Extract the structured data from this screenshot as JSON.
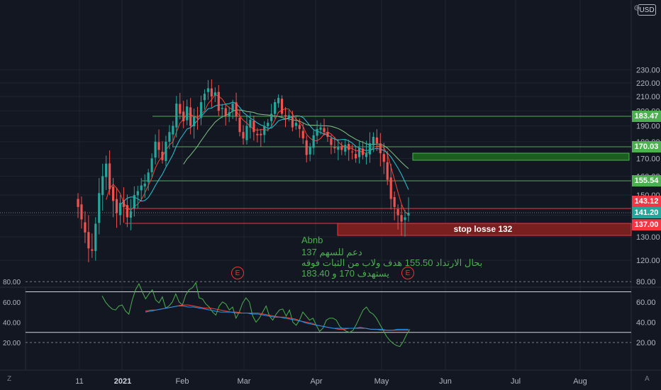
{
  "header": {
    "currency": "USD",
    "currency_icon": "settings-icon"
  },
  "annotation": {
    "title": "Abnb",
    "line1": "دعم للسهم 137",
    "line2": "بحال الارتداد 155.50 هدف ولاب من الثبات فوقه",
    "line3": "يستهدف 170 و 183.40"
  },
  "stop_loss": {
    "label": "stop losse 132"
  },
  "earnings_marker": "E",
  "footer": {
    "left_icon": "Z",
    "right_icon": "A"
  },
  "colors": {
    "up": "#26a69a",
    "down": "#ef5350",
    "support": "#4caf50",
    "resistance": "#f23645",
    "ma_fast": "#f44336",
    "ma_mid": "#26c6da",
    "ma_slow": "#81c784"
  },
  "chart_data": [
    {
      "type": "candlestick",
      "symbol": "Abnb",
      "x_ticks": [
        "11",
        "2021",
        "Feb",
        "Mar",
        "Apr",
        "May",
        "Jun",
        "Jul",
        "Aug"
      ],
      "y_ticks": [
        "120.00",
        "130.00",
        "140.00",
        "150.00",
        "160.00",
        "170.00",
        "180.00",
        "190.00",
        "200.00",
        "210.00",
        "220.00",
        "230.00"
      ],
      "ylim": [
        113,
        232
      ],
      "y_scale": "log",
      "price_labels": [
        {
          "value": "183.47",
          "kind": "support"
        },
        {
          "value": "170.03",
          "kind": "support"
        },
        {
          "value": "155.54",
          "kind": "support"
        },
        {
          "value": "143.12",
          "kind": "resistance"
        },
        {
          "value": "141.20",
          "kind": "last"
        },
        {
          "value": "137.00",
          "kind": "resistance"
        }
      ],
      "horizontal_levels": [
        183.47,
        170.03,
        155.54,
        143.12,
        137.0
      ],
      "stop_loss_zone": [
        132,
        137
      ],
      "target_box": [
        166,
        169
      ],
      "close_series": [
        144,
        138,
        132,
        125,
        124,
        136,
        151,
        160,
        167,
        153,
        147,
        141,
        146,
        144,
        139,
        142,
        150,
        152,
        155,
        156,
        162,
        170,
        180,
        175,
        169,
        180,
        186,
        190,
        205,
        198,
        193,
        203,
        190,
        196,
        195,
        206,
        212,
        216,
        210,
        213,
        200,
        202,
        197,
        199,
        205,
        196,
        186,
        182,
        190,
        194,
        186,
        184,
        184,
        190,
        192,
        198,
        206,
        209,
        198,
        196,
        197,
        189,
        192,
        188,
        182,
        172,
        177,
        184,
        188,
        189,
        186,
        183,
        178,
        176,
        177,
        175,
        178,
        175,
        174,
        170,
        176,
        172,
        173,
        179,
        183,
        179,
        173,
        168,
        158,
        148,
        144,
        140,
        137,
        139,
        141.2
      ]
    },
    {
      "type": "line",
      "title": "",
      "y_ticks": [
        "20.00",
        "40.00",
        "60.00",
        "80.00"
      ],
      "ylim": [
        12,
        87
      ],
      "bands": [
        30,
        70
      ],
      "series": [
        {
          "values": [
            66,
            60,
            56,
            53,
            52,
            56,
            57,
            51,
            48,
            62,
            72,
            78,
            70,
            63,
            68,
            72,
            62,
            59,
            65,
            54,
            56,
            60,
            68,
            60,
            57,
            67,
            72,
            74,
            79,
            64,
            63,
            58,
            55,
            50,
            47,
            56,
            60,
            58,
            52,
            55,
            44,
            50,
            59,
            64,
            60,
            46,
            40,
            44,
            50,
            56,
            46,
            42,
            48,
            52,
            53,
            46,
            52,
            40,
            37,
            42,
            50,
            46,
            42,
            44,
            37,
            31,
            34,
            42,
            44,
            44,
            42,
            36,
            33,
            31,
            30,
            32,
            38,
            45,
            52,
            55,
            50,
            48,
            44,
            38,
            32,
            26,
            22,
            19,
            17,
            16,
            21,
            28,
            33
          ]
        },
        {
          "values": [
            51,
            52,
            52,
            53,
            54,
            55,
            56,
            57,
            57,
            56,
            55,
            54,
            54,
            53,
            52,
            51,
            50,
            50,
            49,
            49,
            49,
            49,
            48,
            47,
            46,
            45,
            45,
            44,
            43,
            41,
            40,
            39,
            37,
            36,
            35,
            34,
            33,
            33,
            34,
            34,
            35,
            34,
            33,
            33,
            32,
            32,
            32,
            32,
            32,
            32
          ]
        },
        {
          "values": [
            50,
            51,
            52,
            53,
            54,
            55,
            56,
            56,
            55,
            55,
            54,
            53,
            52,
            51,
            50,
            50,
            50,
            49,
            49,
            49,
            48,
            48,
            47,
            46,
            45,
            45,
            44,
            43,
            42,
            41,
            39,
            38,
            37,
            36,
            35,
            34,
            34,
            34,
            34,
            34,
            34,
            34,
            33,
            33,
            33,
            32,
            32,
            33,
            33,
            33
          ]
        }
      ]
    }
  ]
}
